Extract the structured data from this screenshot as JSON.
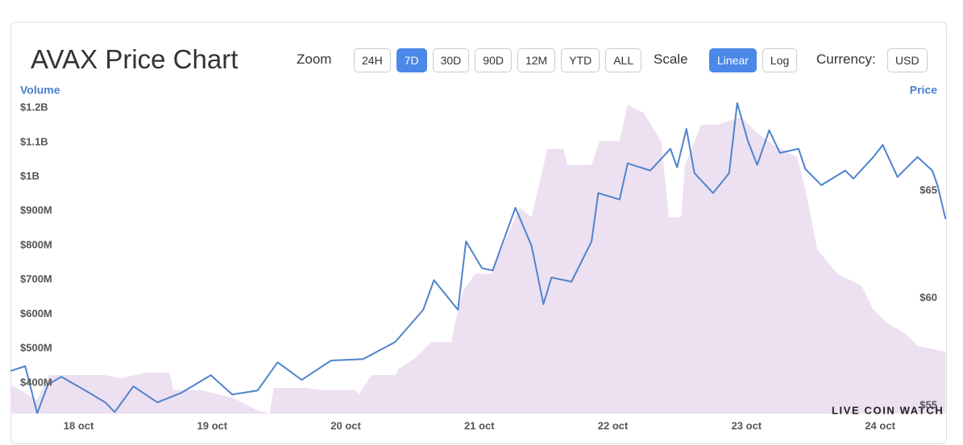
{
  "header": {
    "title": "AVAX Price Chart",
    "zoom_label": "Zoom",
    "zoom_options": [
      "24H",
      "7D",
      "30D",
      "90D",
      "12M",
      "YTD",
      "ALL"
    ],
    "zoom_selected": 1,
    "scale_label": "Scale",
    "scale_options": [
      "Linear",
      "Log"
    ],
    "scale_selected": 0,
    "currency_label": "Currency:",
    "currency": "USD"
  },
  "watermark": "LIVE COIN WATCH",
  "chart_data": {
    "type": "line",
    "xlim": [
      17.49,
      24.5
    ],
    "xticks": [
      {
        "value": 18,
        "label": "18 oct"
      },
      {
        "value": 19,
        "label": "19 oct"
      },
      {
        "value": 20,
        "label": "20 oct"
      },
      {
        "value": 21,
        "label": "21 oct"
      },
      {
        "value": 22,
        "label": "22 oct"
      },
      {
        "value": 23,
        "label": "23 oct"
      },
      {
        "value": 24,
        "label": "24 oct"
      }
    ],
    "ylim": [
      311000000,
      1233000000
    ],
    "yticks": [
      {
        "value": 400000000,
        "label": "$400M"
      },
      {
        "value": 500000000,
        "label": "$500M"
      },
      {
        "value": 600000000,
        "label": "$600M"
      },
      {
        "value": 700000000,
        "label": "$700M"
      },
      {
        "value": 800000000,
        "label": "$800M"
      },
      {
        "value": 900000000,
        "label": "$900M"
      },
      {
        "value": 1000000000,
        "label": "$1B"
      },
      {
        "value": 1100000000,
        "label": "$1.1B"
      },
      {
        "value": 1200000000,
        "label": "$1.2B"
      }
    ],
    "y2lim": [
      54.63,
      69.38
    ],
    "y2ticks": [
      {
        "value": 55,
        "label": "$55"
      },
      {
        "value": 60,
        "label": "$60"
      },
      {
        "value": 65,
        "label": "$65"
      }
    ],
    "grid": false,
    "series": [
      {
        "name": "Volume",
        "type": "area",
        "color": "#ede0f1",
        "axis": "y",
        "x": [
          17.49,
          17.69,
          17.78,
          18.2,
          18.32,
          18.5,
          18.68,
          18.71,
          18.92,
          19.16,
          19.34,
          19.43,
          19.46,
          19.7,
          19.83,
          20.07,
          20.1,
          20.19,
          20.37,
          20.4,
          20.52,
          20.64,
          20.79,
          20.82,
          20.88,
          20.97,
          21.09,
          21.18,
          21.3,
          21.39,
          21.51,
          21.63,
          21.66,
          21.84,
          21.9,
          22.05,
          22.11,
          22.23,
          22.36,
          22.42,
          22.51,
          22.54,
          22.66,
          22.78,
          22.96,
          23.08,
          23.2,
          23.38,
          23.44,
          23.53,
          23.68,
          23.86,
          23.95,
          24.04,
          24.19,
          24.28,
          24.49
        ],
        "values": [
          395000000,
          351000000,
          423000000,
          423000000,
          414000000,
          430000000,
          430000000,
          379000000,
          379000000,
          356000000,
          320000000,
          311000000,
          386000000,
          386000000,
          379000000,
          379000000,
          367000000,
          423000000,
          423000000,
          442000000,
          473000000,
          519000000,
          519000000,
          578000000,
          671000000,
          718000000,
          718000000,
          800000000,
          910000000,
          882000000,
          1081000000,
          1081000000,
          1034000000,
          1034000000,
          1104000000,
          1104000000,
          1209000000,
          1186000000,
          1104000000,
          882000000,
          882000000,
          1034000000,
          1151000000,
          1151000000,
          1174000000,
          1127000000,
          1092000000,
          1057000000,
          964000000,
          788000000,
          718000000,
          683000000,
          613000000,
          578000000,
          543000000,
          508000000,
          491000000
        ]
      },
      {
        "name": "Price",
        "type": "line",
        "color": "#4f84cc",
        "axis": "y2",
        "x": [
          17.49,
          17.6,
          17.69,
          17.77,
          17.87,
          18.05,
          18.2,
          18.27,
          18.41,
          18.59,
          18.77,
          18.99,
          19.15,
          19.34,
          19.49,
          19.67,
          19.89,
          20.13,
          20.37,
          20.58,
          20.66,
          20.84,
          20.9,
          21.02,
          21.1,
          21.27,
          21.39,
          21.48,
          21.54,
          21.69,
          21.84,
          21.89,
          22.05,
          22.11,
          22.28,
          22.43,
          22.48,
          22.55,
          22.61,
          22.75,
          22.87,
          22.93,
          23.01,
          23.08,
          23.17,
          23.25,
          23.39,
          23.44,
          23.56,
          23.74,
          23.8,
          23.95,
          24.02,
          24.13,
          24.28,
          24.39,
          24.43,
          24.49
        ],
        "values": [
          56.61,
          56.84,
          54.65,
          55.97,
          56.35,
          55.71,
          55.15,
          54.7,
          55.9,
          55.15,
          55.6,
          56.42,
          55.52,
          55.71,
          57.02,
          56.2,
          57.1,
          57.17,
          57.96,
          59.46,
          60.84,
          59.46,
          62.64,
          61.4,
          61.29,
          64.21,
          62.45,
          59.72,
          60.96,
          60.77,
          62.64,
          64.89,
          64.59,
          66.27,
          65.94,
          66.95,
          66.09,
          67.88,
          65.82,
          64.89,
          65.82,
          69.08,
          67.32,
          66.2,
          67.81,
          66.76,
          66.95,
          66.01,
          65.26,
          65.94,
          65.56,
          66.57,
          67.13,
          65.64,
          66.57,
          65.94,
          65.26,
          63.69
        ]
      }
    ]
  }
}
